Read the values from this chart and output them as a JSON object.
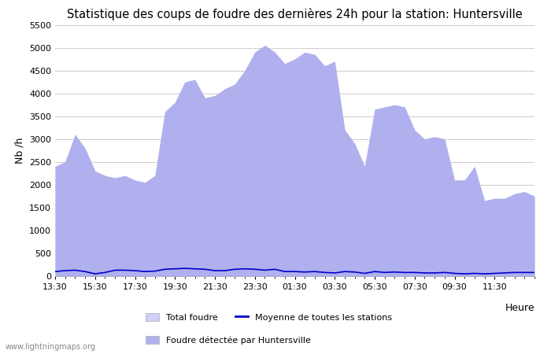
{
  "title": "Statistique des coups de foudre des dernières 24h pour la station: Huntersville",
  "xlabel": "Heure",
  "ylabel": "Nb /h",
  "ylim": [
    0,
    5500
  ],
  "yticks": [
    0,
    500,
    1000,
    1500,
    2000,
    2500,
    3000,
    3500,
    4000,
    4500,
    5000,
    5500
  ],
  "xtick_labels": [
    "13:30",
    "15:30",
    "17:30",
    "19:30",
    "21:30",
    "23:30",
    "01:30",
    "03:30",
    "05:30",
    "07:30",
    "09:30",
    "11:30"
  ],
  "watermark": "www.lightningmaps.org",
  "fill_total_color": "#d0d0f8",
  "fill_local_color": "#b0b0ee",
  "line_color": "#0000cc",
  "background_color": "#ffffff",
  "grid_color": "#cccccc",
  "title_fontsize": 10.5,
  "legend_labels": [
    "Total foudre",
    "Moyenne de toutes les stations",
    "Foudre détectée par Huntersville"
  ],
  "x_values": [
    0,
    1,
    2,
    3,
    4,
    5,
    6,
    7,
    8,
    9,
    10,
    11,
    12,
    13,
    14,
    15,
    16,
    17,
    18,
    19,
    20,
    21,
    22,
    23,
    24,
    25,
    26,
    27,
    28,
    29,
    30,
    31,
    32,
    33,
    34,
    35,
    36,
    37,
    38,
    39,
    40,
    41,
    42,
    43,
    44,
    45,
    46,
    47,
    48
  ],
  "total_foudre": [
    2400,
    2500,
    3100,
    2800,
    2300,
    2200,
    2150,
    2200,
    2100,
    2050,
    2200,
    3600,
    3800,
    4250,
    4300,
    3900,
    3950,
    4100,
    4200,
    4500,
    4900,
    5050,
    4900,
    4650,
    4750,
    4900,
    4850,
    4600,
    4700,
    3200,
    2900,
    2400,
    3650,
    3700,
    3750,
    3700,
    3200,
    3000,
    3050,
    3000,
    2100,
    2100,
    2400,
    1650,
    1700,
    1700,
    1800,
    1850,
    1750
  ],
  "local_foudre": [
    2400,
    2500,
    3100,
    2800,
    2300,
    2200,
    2150,
    2200,
    2100,
    2050,
    2200,
    3600,
    3800,
    4250,
    4300,
    3900,
    3950,
    4100,
    4200,
    4500,
    4900,
    5050,
    4900,
    4650,
    4750,
    4900,
    4850,
    4600,
    4700,
    3200,
    2900,
    2400,
    3650,
    3700,
    3750,
    3700,
    3200,
    3000,
    3050,
    3000,
    2100,
    2100,
    2400,
    1650,
    1700,
    1700,
    1800,
    1850,
    1750
  ],
  "moyenne": [
    100,
    120,
    130,
    100,
    50,
    80,
    130,
    130,
    120,
    100,
    110,
    150,
    160,
    170,
    160,
    150,
    120,
    120,
    150,
    160,
    150,
    130,
    150,
    100,
    100,
    90,
    100,
    80,
    70,
    100,
    90,
    60,
    100,
    80,
    90,
    80,
    80,
    70,
    70,
    80,
    60,
    50,
    60,
    50,
    60,
    70,
    80,
    80,
    80
  ]
}
